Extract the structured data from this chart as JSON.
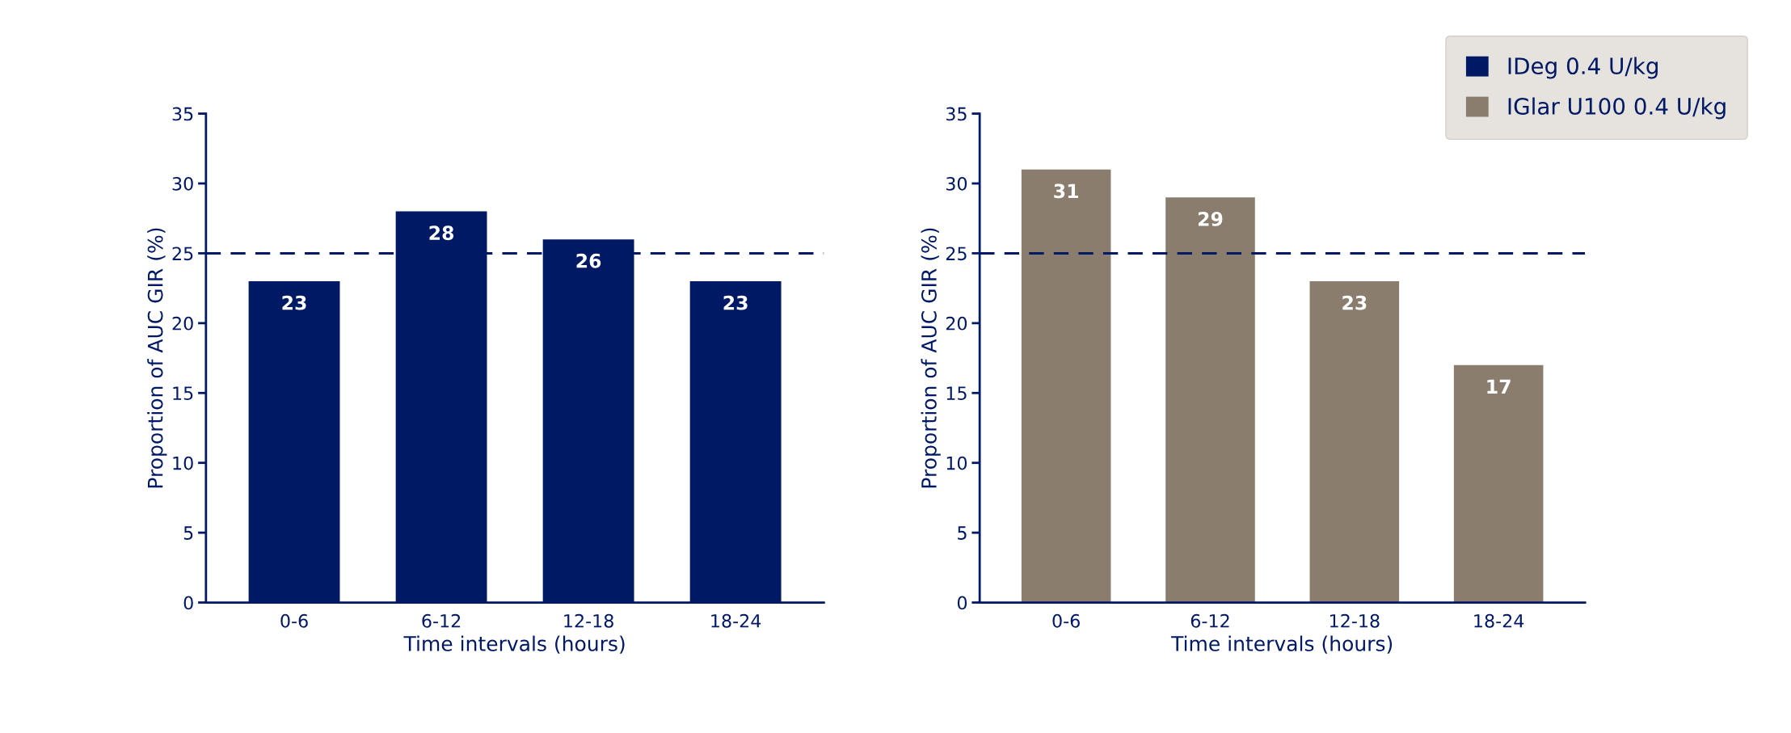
{
  "chart_data": [
    {
      "type": "bar",
      "categories": [
        "0-6",
        "6-12",
        "12-18",
        "18-24"
      ],
      "xlabel": "Time intervals (hours)",
      "ylabel": "Proportion of AUC GIR (%)",
      "series": [
        {
          "name": "IDeg 0.4 U/kg",
          "color": "#001965",
          "values": [
            23,
            28,
            26,
            23
          ]
        }
      ],
      "ylim": [
        0,
        35
      ],
      "yticks": [
        0,
        5,
        10,
        15,
        20,
        25,
        30,
        35
      ],
      "data_labels": true,
      "legend": "top right",
      "grid": false,
      "ref_lines": [
        {
          "axis": "y",
          "value": 25,
          "color": "#001965",
          "line_style": "dashed"
        }
      ]
    },
    {
      "type": "bar",
      "categories": [
        "0-6",
        "6-12",
        "12-18",
        "18-24"
      ],
      "xlabel": "Time intervals (hours)",
      "ylabel": "Proportion of AUC GIR (%)",
      "series": [
        {
          "name": "IGlar U100 0.4 U/kg",
          "color": "#8b7d6e",
          "values": [
            31,
            29,
            23,
            17
          ]
        }
      ],
      "ylim": [
        0,
        35
      ],
      "yticks": [
        0,
        5,
        10,
        15,
        20,
        25,
        30,
        35
      ],
      "data_labels": true,
      "legend": "top right",
      "grid": false,
      "ref_lines": [
        {
          "axis": "y",
          "value": 25,
          "color": "#001965",
          "line_style": "dashed"
        }
      ]
    }
  ]
}
